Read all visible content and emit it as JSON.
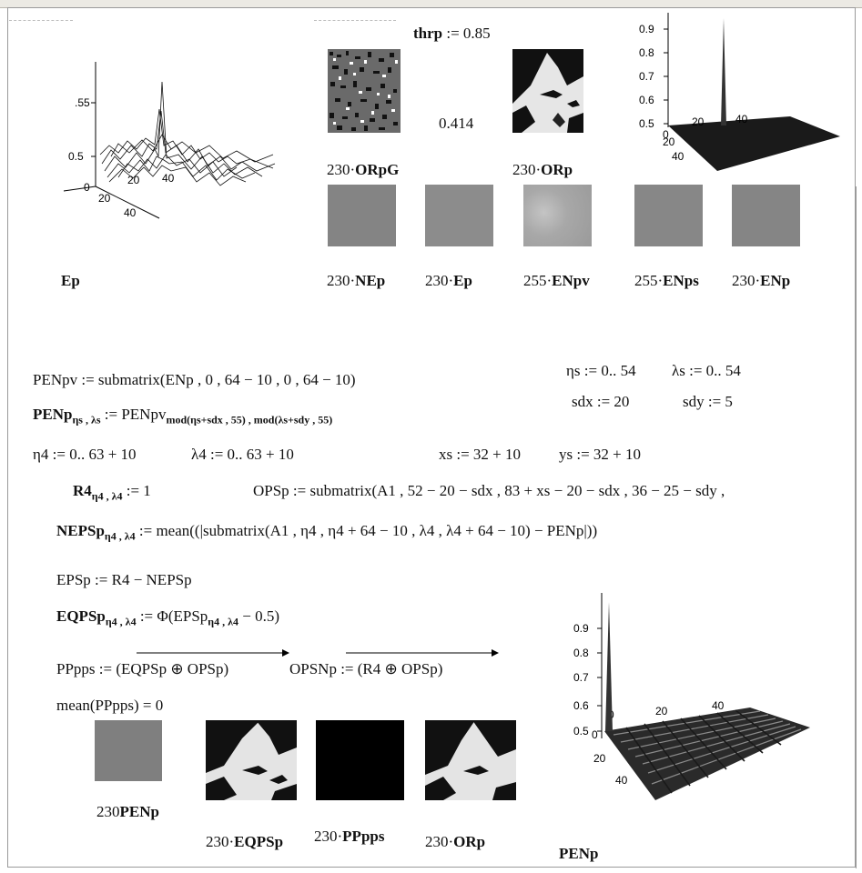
{
  "worksheet": {
    "thrp": {
      "lhs": "thrp",
      "rhs": ":= 0.85"
    },
    "score": "0.414",
    "top_images": [
      {
        "prefix": "230·",
        "name": "ORpG"
      },
      {
        "prefix": "230·",
        "name": "ORp"
      }
    ],
    "row_images": [
      {
        "prefix": "230·",
        "name": "NEp"
      },
      {
        "prefix": "230·",
        "name": "Ep"
      },
      {
        "prefix": "255·",
        "name": "ENpv"
      },
      {
        "prefix": "255·",
        "name": "ENps"
      },
      {
        "prefix": "230·",
        "name": "ENp"
      }
    ],
    "ep_label": "Ep",
    "ep_plot": {
      "tick_y1": ".55",
      "tick_y2": "0.5",
      "tick_y3": "0",
      "tick_x1": "20",
      "tick_x2": "40",
      "tick_z1": "0",
      "tick_z2": "20",
      "tick_z3": "40"
    },
    "top3d": {
      "ticks": [
        "0.9",
        "0.8",
        "0.7",
        "0.6",
        "0.5"
      ],
      "x0": "0",
      "x1": "20",
      "x2": "40",
      "z1": "20",
      "z2": "40"
    },
    "bot3d": {
      "ticks": [
        "0.9",
        "0.8",
        "0.7",
        "0.6",
        "0.5"
      ],
      "x0": "0",
      "x1": "20",
      "x2": "40",
      "z0": "0",
      "z1": "20",
      "z2": "40"
    },
    "eq": {
      "penpv": "PENpv := submatrix(ENp , 0 , 64 − 10 , 0 , 64 − 10)",
      "penp_lhs": "PENp",
      "penp_sub": "ηs , λs",
      "penp_rhs": " := PENpv",
      "penp_rsub": "mod(ηs+sdx , 55) , mod(λs+sdy , 55)",
      "eta_s": "ηs := 0.. 54",
      "lambda_s": "λs := 0.. 54",
      "sdx": "sdx := 20",
      "sdy": "sdy := 5",
      "eta4": "η4 := 0.. 63 + 10",
      "lambda4": "λ4 := 0.. 63 + 10",
      "xs": "xs := 32 + 10",
      "ys": "ys := 32 + 10",
      "r4_lhs": "R4",
      "r4_sub": "η4 , λ4",
      "r4_rhs": " := 1",
      "opsp": "OPSp := submatrix(A1 , 52 − 20 − sdx , 83 + xs − 20 − sdx , 36 − 25 − sdy ,",
      "neps_lhs": "NEPSp",
      "neps_sub": "η4 , λ4",
      "neps_rhs": " := mean((|submatrix(A1 , η4 , η4 + 64 − 10 , λ4 , λ4 + 64 − 10) − PENp|))",
      "epsp": "EPSp := R4 − NEPSp",
      "eqps_lhs": "EQPSp",
      "eqps_sub": "η4 , λ4",
      "eqps_rhs_a": " := Φ(EPSp",
      "eqps_rsub": "η4 , λ4",
      "eqps_rhs_b": " − 0.5)",
      "pppps": "PPpps := (EQPSp ⊕ OPSp)",
      "opsnp": "OPSNp := (R4 ⊕ OPSp)",
      "mean": "mean(PPpps) = 0"
    },
    "bottom_images": [
      {
        "prefix": "230",
        "name": "PENp"
      },
      {
        "prefix": "230·",
        "name": "EQPSp"
      },
      {
        "prefix": "230·",
        "name": "PPpps"
      },
      {
        "prefix": "230·",
        "name": "ORp"
      }
    ],
    "penp_label": "PENp"
  }
}
